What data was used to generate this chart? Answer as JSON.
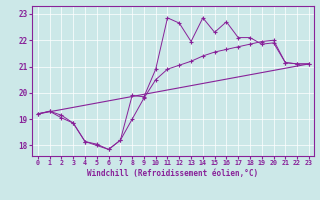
{
  "xlabel": "Windchill (Refroidissement éolien,°C)",
  "bg_color": "#cce8e8",
  "line_color": "#882299",
  "xlim_min": -0.5,
  "xlim_max": 23.4,
  "ylim_min": 17.6,
  "ylim_max": 23.3,
  "yticks": [
    18,
    19,
    20,
    21,
    22,
    23
  ],
  "xticks": [
    0,
    1,
    2,
    3,
    4,
    5,
    6,
    7,
    8,
    9,
    10,
    11,
    12,
    13,
    14,
    15,
    16,
    17,
    18,
    19,
    20,
    21,
    22,
    23
  ],
  "line1_x": [
    0,
    1,
    2,
    3,
    4,
    5,
    6,
    7,
    8,
    9,
    10,
    11,
    12,
    13,
    14,
    15,
    16,
    17,
    18,
    19,
    20,
    21,
    22,
    23
  ],
  "line1_y": [
    19.2,
    19.3,
    19.15,
    18.85,
    18.15,
    18.05,
    17.85,
    18.2,
    19.9,
    19.85,
    20.9,
    22.85,
    22.65,
    21.95,
    22.85,
    22.3,
    22.7,
    22.1,
    22.1,
    21.85,
    21.9,
    21.15,
    21.1,
    21.1
  ],
  "line2_x": [
    0,
    23
  ],
  "line2_y": [
    19.2,
    21.1
  ],
  "line3_x": [
    0,
    1,
    2,
    3,
    4,
    5,
    6,
    7,
    8,
    9,
    10,
    11,
    12,
    13,
    14,
    15,
    16,
    17,
    18,
    19,
    20,
    21,
    22,
    23
  ],
  "line3_y": [
    19.2,
    19.3,
    19.05,
    18.85,
    18.15,
    18.0,
    17.85,
    18.2,
    19.0,
    19.8,
    20.5,
    20.9,
    21.05,
    21.2,
    21.4,
    21.55,
    21.65,
    21.75,
    21.85,
    21.95,
    22.0,
    21.15,
    21.1,
    21.1
  ]
}
